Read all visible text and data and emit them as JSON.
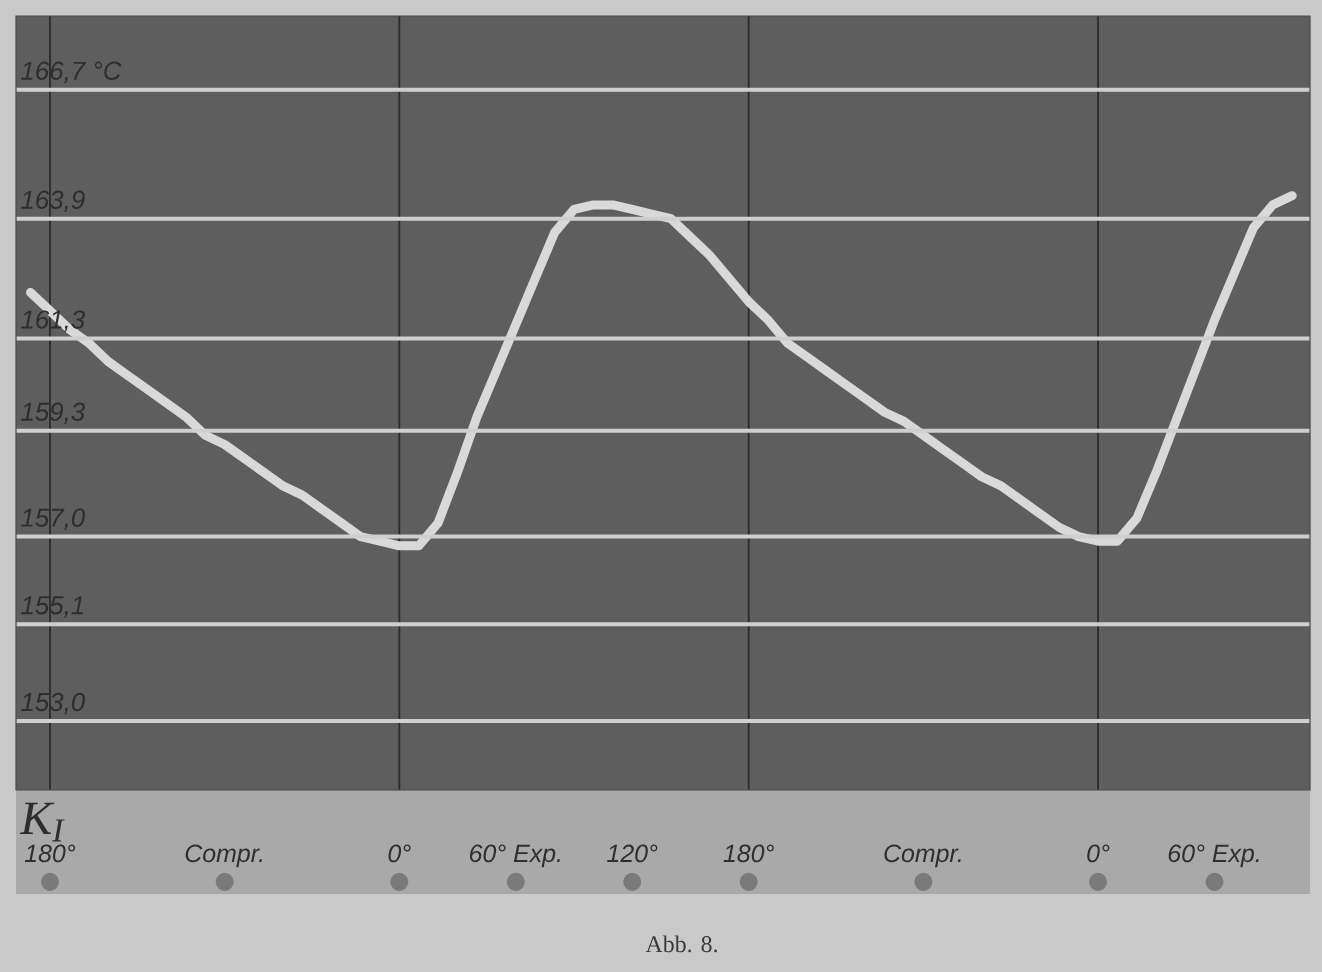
{
  "chart_data": {
    "type": "line",
    "annotations": [
      "K$_{I}$",
      "Abb. 8."
    ],
    "categories": [
      null,
      "180°",
      null,
      null,
      null,
      null,
      null,
      null,
      null,
      null,
      "Compr.",
      null,
      null,
      null,
      null,
      null,
      null,
      null,
      null,
      "0°",
      null,
      null,
      null,
      null,
      null,
      "60° Exp.",
      null,
      null,
      null,
      null,
      null,
      "120°",
      null,
      null,
      null,
      null,
      null,
      "180°",
      null,
      null,
      null,
      null,
      null,
      null,
      null,
      null,
      "Compr.",
      null,
      null,
      null,
      null,
      null,
      null,
      null,
      null,
      "0°",
      null,
      null,
      null,
      null,
      null,
      "60° Exp.",
      null,
      null,
      null,
      null
    ],
    "series": [
      {
        "color": "#d9d9d9",
        "values": [
          162.3,
          161.9,
          161.5,
          161.2,
          160.8,
          160.5,
          160.2,
          159.9,
          159.6,
          159.2,
          159.0,
          158.7,
          158.4,
          158.1,
          157.9,
          157.6,
          157.3,
          157.0,
          156.9,
          156.8,
          156.8,
          157.3,
          158.4,
          159.6,
          160.6,
          161.6,
          162.6,
          163.6,
          164.1,
          164.2,
          164.2,
          164.1,
          164.0,
          163.9,
          163.5,
          163.1,
          162.6,
          162.1,
          161.7,
          161.2,
          160.9,
          160.6,
          160.3,
          160.0,
          159.7,
          159.5,
          159.2,
          158.9,
          158.6,
          158.3,
          158.1,
          157.8,
          157.5,
          157.2,
          157.0,
          156.9,
          156.9,
          157.4,
          158.4,
          159.5,
          160.6,
          161.7,
          162.7,
          163.7,
          164.2,
          164.4
        ]
      }
    ],
    "ylim": [
      151.5,
      168.3
    ],
    "yticks": [
      {
        "value": 166.7,
        "label": "166,7 °C"
      },
      {
        "value": 163.9,
        "label": "163,9"
      },
      {
        "value": 161.3,
        "label": "161,3"
      },
      {
        "value": 159.3,
        "label": "159,3"
      },
      {
        "value": 157.0,
        "label": "157,0"
      },
      {
        "value": 155.1,
        "label": "155,1"
      },
      {
        "value": 153.0,
        "label": "153,0"
      }
    ],
    "grid": "y",
    "line_style": "solid"
  }
}
